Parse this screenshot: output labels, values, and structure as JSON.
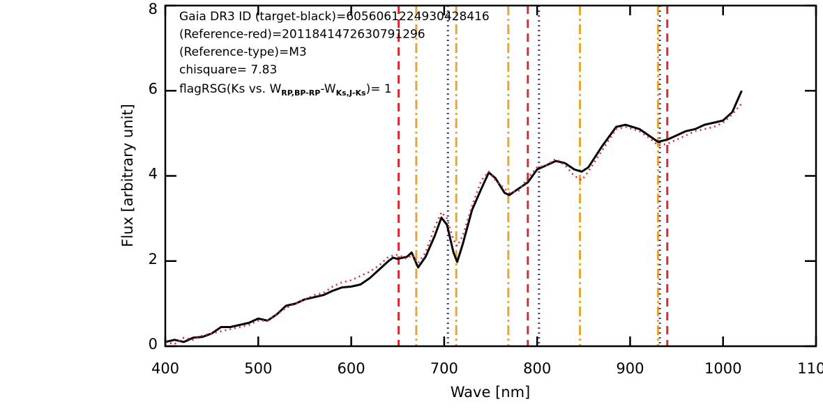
{
  "chart_data": {
    "type": "line",
    "x_label": "Wave [nm]",
    "y_label": "Flux [arbitrary unit]",
    "xlim": [
      400,
      1100
    ],
    "ylim": [
      0,
      8
    ],
    "xticks": [
      400,
      500,
      600,
      700,
      800,
      900,
      1000,
      1100
    ],
    "yticks": [
      0,
      2,
      4,
      6,
      8
    ],
    "annotations": [
      "Gaia DR3 ID (target-black)=6056061224930428416",
      "(Reference-red)=2011841472630791296",
      "(Reference-type)=M3",
      "chisquare= 7.83"
    ],
    "flag_annotation": [
      {
        "text": "flagRSG(Ks vs. W"
      },
      {
        "text": "RP,BP-RP",
        "sub": true
      },
      {
        "text": "-W"
      },
      {
        "text": "Ks,J-Ks",
        "sub": true
      },
      {
        "text": ")= 1"
      }
    ],
    "vertical_lines": [
      {
        "color": "#d62a35",
        "style": "dashed",
        "x": [
          651,
          790,
          940
        ]
      },
      {
        "color": "#e8a530",
        "style": "dashdot",
        "x": [
          670,
          713,
          769,
          846,
          930
        ]
      },
      {
        "color": "#3a3aa0",
        "style": "dotted",
        "x": [
          704,
          802,
          932
        ]
      }
    ],
    "series": [
      {
        "color": "#000000",
        "style": "solid",
        "x": [
          400,
          410,
          420,
          430,
          440,
          450,
          460,
          470,
          480,
          490,
          500,
          510,
          520,
          530,
          540,
          550,
          560,
          570,
          580,
          590,
          600,
          610,
          620,
          630,
          640,
          645,
          650,
          660,
          665,
          672,
          680,
          690,
          697,
          703,
          710,
          714,
          720,
          730,
          740,
          748,
          755,
          765,
          770,
          780,
          790,
          800,
          810,
          820,
          830,
          840,
          848,
          855,
          870,
          885,
          895,
          910,
          920,
          930,
          940,
          950,
          960,
          970,
          980,
          990,
          1000,
          1010,
          1015,
          1020
        ],
        "values": [
          0.1,
          0.15,
          0.1,
          0.2,
          0.22,
          0.3,
          0.45,
          0.45,
          0.5,
          0.55,
          0.65,
          0.6,
          0.75,
          0.95,
          1.0,
          1.1,
          1.15,
          1.2,
          1.3,
          1.38,
          1.4,
          1.45,
          1.6,
          1.8,
          2.0,
          2.08,
          2.05,
          2.1,
          2.2,
          1.85,
          2.1,
          2.6,
          3.02,
          2.85,
          2.2,
          1.98,
          2.4,
          3.2,
          3.7,
          4.08,
          3.95,
          3.6,
          3.55,
          3.7,
          3.85,
          4.15,
          4.25,
          4.35,
          4.3,
          4.15,
          4.1,
          4.2,
          4.7,
          5.15,
          5.2,
          5.1,
          4.95,
          4.8,
          4.85,
          4.95,
          5.05,
          5.1,
          5.2,
          5.25,
          5.3,
          5.5,
          5.75,
          6.0
        ]
      },
      {
        "color": "#d62a35",
        "style": "dotted",
        "x": [
          400,
          410,
          420,
          430,
          440,
          450,
          460,
          470,
          480,
          490,
          500,
          510,
          520,
          530,
          540,
          550,
          560,
          570,
          580,
          590,
          600,
          610,
          620,
          630,
          640,
          650,
          660,
          665,
          672,
          680,
          690,
          697,
          703,
          710,
          714,
          720,
          730,
          740,
          748,
          755,
          765,
          770,
          780,
          790,
          800,
          810,
          820,
          830,
          840,
          848,
          855,
          870,
          885,
          895,
          910,
          920,
          930,
          940,
          950,
          960,
          970,
          980,
          990,
          1000,
          1010,
          1020
        ],
        "values": [
          0.1,
          0.05,
          0.2,
          0.15,
          0.25,
          0.3,
          0.35,
          0.4,
          0.45,
          0.5,
          0.6,
          0.6,
          0.75,
          0.9,
          1.0,
          1.1,
          1.2,
          1.25,
          1.4,
          1.5,
          1.55,
          1.65,
          1.75,
          1.9,
          2.1,
          2.15,
          2.05,
          2.15,
          1.95,
          2.2,
          2.8,
          3.15,
          3.0,
          2.5,
          2.35,
          2.6,
          3.3,
          3.9,
          4.1,
          3.9,
          3.7,
          3.6,
          3.65,
          3.95,
          4.2,
          4.25,
          4.4,
          4.25,
          4.0,
          3.9,
          4.1,
          4.6,
          5.1,
          5.15,
          5.05,
          4.9,
          4.72,
          4.75,
          4.85,
          4.95,
          5.05,
          5.1,
          5.15,
          5.25,
          5.45,
          5.7
        ]
      }
    ]
  }
}
